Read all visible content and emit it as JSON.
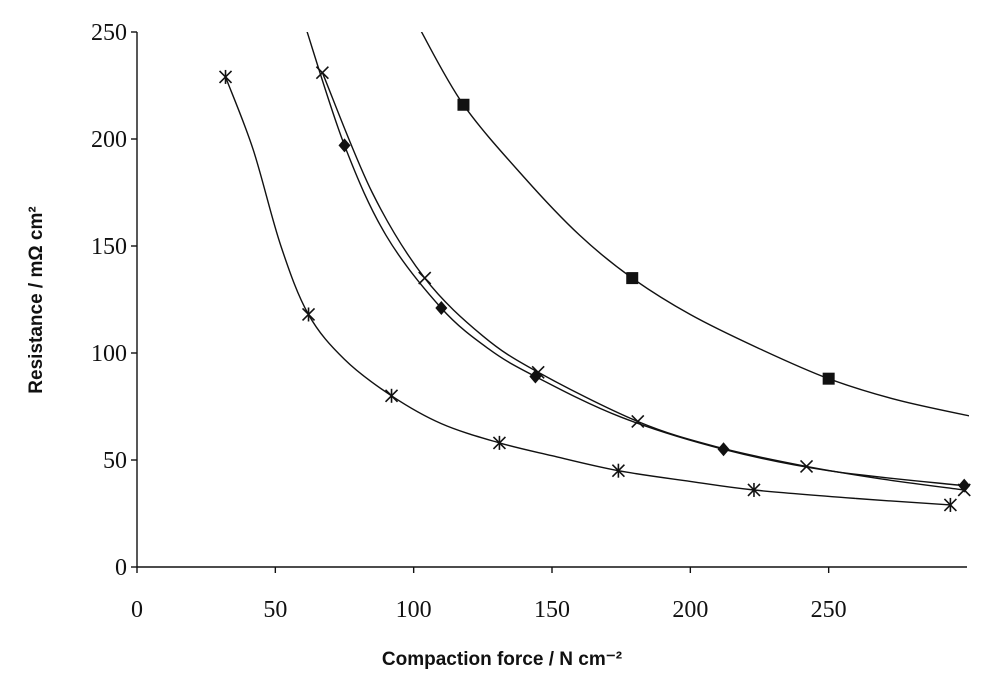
{
  "chart_data": {
    "type": "scatter",
    "xlabel": "Compaction force / N cm⁻²",
    "ylabel": "Resistance / mΩ cm²",
    "xlim": [
      0,
      300
    ],
    "ylim": [
      0,
      250
    ],
    "x_ticks": [
      "0",
      "50",
      "100",
      "150",
      "200",
      "250"
    ],
    "y_ticks": [
      "0",
      "50",
      "100",
      "150",
      "200",
      "250"
    ],
    "grid": false,
    "legend": "none",
    "series": [
      {
        "marker": "square",
        "points": [
          [
            118,
            216
          ],
          [
            179,
            135
          ],
          [
            250,
            88
          ]
        ],
        "curve": [
          [
            102,
            252
          ],
          [
            118,
            216
          ],
          [
            140,
            182
          ],
          [
            160,
            155
          ],
          [
            179,
            135
          ],
          [
            200,
            118
          ],
          [
            225,
            102
          ],
          [
            250,
            88
          ],
          [
            275,
            78
          ],
          [
            303,
            70
          ]
        ]
      },
      {
        "marker": "diamond",
        "points": [
          [
            75,
            197
          ],
          [
            110,
            121
          ],
          [
            144,
            89
          ],
          [
            212,
            55
          ],
          [
            299,
            38
          ]
        ],
        "curve": [
          [
            61,
            252
          ],
          [
            75,
            197
          ],
          [
            90,
            155
          ],
          [
            110,
            121
          ],
          [
            127,
            102
          ],
          [
            144,
            89
          ],
          [
            175,
            70
          ],
          [
            212,
            55
          ],
          [
            250,
            45
          ],
          [
            299,
            38
          ]
        ]
      },
      {
        "marker": "x",
        "points": [
          [
            67,
            231
          ],
          [
            104,
            135
          ],
          [
            145,
            91
          ],
          [
            181,
            68
          ],
          [
            242,
            47
          ],
          [
            299,
            36
          ]
        ],
        "curve": [
          [
            67,
            231
          ],
          [
            85,
            175
          ],
          [
            104,
            135
          ],
          [
            125,
            108
          ],
          [
            145,
            91
          ],
          [
            181,
            68
          ],
          [
            210,
            56
          ],
          [
            242,
            47
          ],
          [
            270,
            41
          ],
          [
            299,
            36
          ]
        ]
      },
      {
        "marker": "asterisk",
        "points": [
          [
            32,
            229
          ],
          [
            62,
            118
          ],
          [
            92,
            80
          ],
          [
            131,
            58
          ],
          [
            174,
            45
          ],
          [
            223,
            36
          ],
          [
            294,
            29
          ]
        ],
        "curve": [
          [
            32,
            229
          ],
          [
            42,
            195
          ],
          [
            52,
            150
          ],
          [
            62,
            118
          ],
          [
            75,
            97
          ],
          [
            92,
            80
          ],
          [
            110,
            67
          ],
          [
            131,
            58
          ],
          [
            150,
            52
          ],
          [
            174,
            45
          ],
          [
            200,
            40
          ],
          [
            223,
            36
          ],
          [
            260,
            32
          ],
          [
            294,
            29
          ]
        ]
      }
    ]
  }
}
